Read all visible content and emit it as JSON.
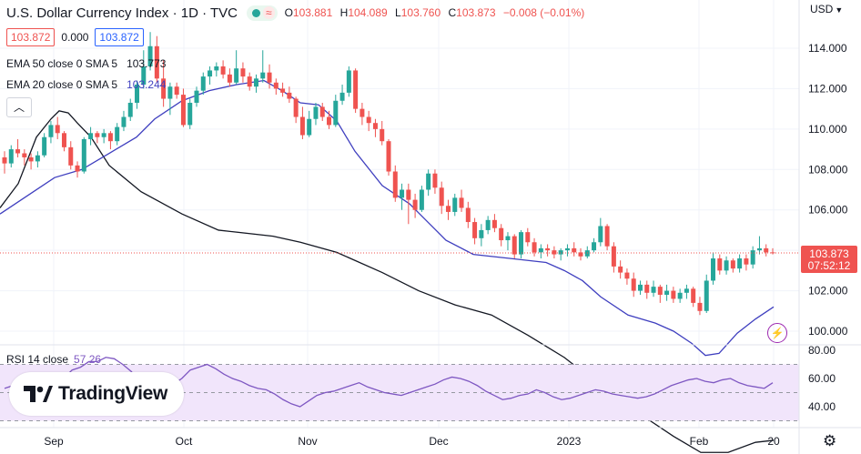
{
  "header": {
    "title": "U.S. Dollar Currency Index · 1D · TVC",
    "open_label": "O",
    "open": "103.881",
    "high_label": "H",
    "high": "104.089",
    "low_label": "L",
    "low": "103.760",
    "close_label": "C",
    "close": "103.873",
    "change": "−0.008 (−0.01%)"
  },
  "quote": {
    "bid": "103.872",
    "spread": "0.000",
    "ask": "103.872"
  },
  "indicators": [
    {
      "label": "EMA 50 close 0 SMA 5",
      "value": "103.773",
      "color": "#131722"
    },
    {
      "label": "EMA 20 close 0 SMA 5",
      "value": "103.244",
      "color": "#3f3fbf"
    }
  ],
  "currency": "USD",
  "rsi": {
    "label": "RSI 14 close",
    "value": "57.26",
    "color": "#7e57c2"
  },
  "brand": "TradingView",
  "price_tag": {
    "price": "103.873",
    "countdown": "07:52:12"
  },
  "colors": {
    "up": "#26a69a",
    "down": "#ef5350",
    "ema50": "#131722",
    "ema20": "#3f3fbf",
    "rsi": "#7e57c2",
    "rsi_band": "#f1e5fb"
  },
  "chart_data": {
    "type": "candlestick",
    "price_axis": {
      "ticks": [
        100,
        102,
        104,
        106,
        108,
        110,
        112,
        114
      ],
      "labels": [
        "100.000",
        "102.000",
        "104.000",
        "106.000",
        "108.000",
        "110.000",
        "112.000",
        "114.000"
      ]
    },
    "time_axis": {
      "labels": [
        "Sep",
        "Oct",
        "Nov",
        "Dec",
        "2023",
        "Feb",
        "20"
      ]
    },
    "rsi_axis": {
      "ticks": [
        40,
        60,
        80
      ],
      "labels": [
        "40.00",
        "60.00",
        "80.00"
      ],
      "upper_band": 70,
      "lower_band": 30
    },
    "candles": [
      [
        108.6,
        108.9,
        107.8,
        108.3
      ],
      [
        108.3,
        109.2,
        108.1,
        109.0
      ],
      [
        109.0,
        109.5,
        108.6,
        108.8
      ],
      [
        108.8,
        109.0,
        108.2,
        108.6
      ],
      [
        108.6,
        108.8,
        108.0,
        108.4
      ],
      [
        108.4,
        108.9,
        108.1,
        108.7
      ],
      [
        108.7,
        109.8,
        108.6,
        109.6
      ],
      [
        109.6,
        110.4,
        109.3,
        110.2
      ],
      [
        110.2,
        110.6,
        109.5,
        109.8
      ],
      [
        109.8,
        109.9,
        108.9,
        109.1
      ],
      [
        109.1,
        109.4,
        108.0,
        108.2
      ],
      [
        108.2,
        108.4,
        107.6,
        107.9
      ],
      [
        107.9,
        109.6,
        107.8,
        109.5
      ],
      [
        109.5,
        110.1,
        109.2,
        109.8
      ],
      [
        109.8,
        109.9,
        109.3,
        109.6
      ],
      [
        109.6,
        110.0,
        109.3,
        109.8
      ],
      [
        109.8,
        109.9,
        109.0,
        109.4
      ],
      [
        109.4,
        110.3,
        109.2,
        110.1
      ],
      [
        110.1,
        110.9,
        109.9,
        110.6
      ],
      [
        110.6,
        111.5,
        110.4,
        111.3
      ],
      [
        111.3,
        112.4,
        111.0,
        112.2
      ],
      [
        112.2,
        113.9,
        112.0,
        113.1
      ],
      [
        113.1,
        114.8,
        112.9,
        114.1
      ],
      [
        114.1,
        114.6,
        112.3,
        112.5
      ],
      [
        112.5,
        113.4,
        111.1,
        111.5
      ],
      [
        111.5,
        112.3,
        110.7,
        112.1
      ],
      [
        112.1,
        112.3,
        111.5,
        111.7
      ],
      [
        111.7,
        112.0,
        110.1,
        110.2
      ],
      [
        110.2,
        111.5,
        110.0,
        111.3
      ],
      [
        111.3,
        112.1,
        111.1,
        111.9
      ],
      [
        111.9,
        112.8,
        111.7,
        112.6
      ],
      [
        112.6,
        113.1,
        112.2,
        112.9
      ],
      [
        112.9,
        113.3,
        112.6,
        113.1
      ],
      [
        113.1,
        113.4,
        112.5,
        112.7
      ],
      [
        112.7,
        113.0,
        112.1,
        112.3
      ],
      [
        112.3,
        113.9,
        112.2,
        113.0
      ],
      [
        113.0,
        113.3,
        112.3,
        112.6
      ],
      [
        112.6,
        112.8,
        111.9,
        112.1
      ],
      [
        112.1,
        112.7,
        111.8,
        112.5
      ],
      [
        112.5,
        113.9,
        112.3,
        112.8
      ],
      [
        112.8,
        113.2,
        112.0,
        112.3
      ],
      [
        112.3,
        112.5,
        111.7,
        112.0
      ],
      [
        112.0,
        112.3,
        111.6,
        111.8
      ],
      [
        111.8,
        112.1,
        111.3,
        111.5
      ],
      [
        111.5,
        111.6,
        110.3,
        110.6
      ],
      [
        110.6,
        111.1,
        109.5,
        109.7
      ],
      [
        109.7,
        110.9,
        109.6,
        110.5
      ],
      [
        110.5,
        111.3,
        110.2,
        111.1
      ],
      [
        111.1,
        111.3,
        110.4,
        110.6
      ],
      [
        110.6,
        110.9,
        110.0,
        110.2
      ],
      [
        110.2,
        111.7,
        110.1,
        111.4
      ],
      [
        111.4,
        112.2,
        111.2,
        111.8
      ],
      [
        111.8,
        113.1,
        111.6,
        112.9
      ],
      [
        112.9,
        113.0,
        110.8,
        111.0
      ],
      [
        111.0,
        111.3,
        110.2,
        110.6
      ],
      [
        110.6,
        110.9,
        109.9,
        110.3
      ],
      [
        110.3,
        110.5,
        109.6,
        110.0
      ],
      [
        110.0,
        110.4,
        109.2,
        109.4
      ],
      [
        109.4,
        109.5,
        107.7,
        107.9
      ],
      [
        107.9,
        108.2,
        106.4,
        106.6
      ],
      [
        106.6,
        107.3,
        106.0,
        107.0
      ],
      [
        107.0,
        107.3,
        105.3,
        106.5
      ],
      [
        106.5,
        106.8,
        105.6,
        106.0
      ],
      [
        106.0,
        107.2,
        105.9,
        107.0
      ],
      [
        107.0,
        108.0,
        106.7,
        107.8
      ],
      [
        107.8,
        108.0,
        106.8,
        107.1
      ],
      [
        107.1,
        107.4,
        105.8,
        106.2
      ],
      [
        106.2,
        106.5,
        105.5,
        105.9
      ],
      [
        105.9,
        106.8,
        105.7,
        106.6
      ],
      [
        106.6,
        107.0,
        105.9,
        106.1
      ],
      [
        106.1,
        106.4,
        105.1,
        105.4
      ],
      [
        105.4,
        105.6,
        104.3,
        104.6
      ],
      [
        104.6,
        105.3,
        104.2,
        105.0
      ],
      [
        105.0,
        105.7,
        104.8,
        105.5
      ],
      [
        105.5,
        105.8,
        104.9,
        105.1
      ],
      [
        105.1,
        105.3,
        104.2,
        104.5
      ],
      [
        104.5,
        104.9,
        104.0,
        104.7
      ],
      [
        104.7,
        104.8,
        103.6,
        103.8
      ],
      [
        103.8,
        105.0,
        103.6,
        104.9
      ],
      [
        104.9,
        105.1,
        104.2,
        104.4
      ],
      [
        104.4,
        104.6,
        103.7,
        103.9
      ],
      [
        103.9,
        104.3,
        103.6,
        104.1
      ],
      [
        104.1,
        104.3,
        103.7,
        104.0
      ],
      [
        104.0,
        104.2,
        103.6,
        103.8
      ],
      [
        103.8,
        104.1,
        103.5,
        104.0
      ],
      [
        104.0,
        104.3,
        103.7,
        104.1
      ],
      [
        104.1,
        104.4,
        103.7,
        103.9
      ],
      [
        103.9,
        104.1,
        103.5,
        103.7
      ],
      [
        103.7,
        104.2,
        103.6,
        104.0
      ],
      [
        104.0,
        104.6,
        103.9,
        104.4
      ],
      [
        104.4,
        105.6,
        104.2,
        105.2
      ],
      [
        105.2,
        105.3,
        104.0,
        104.2
      ],
      [
        104.2,
        104.4,
        102.9,
        103.2
      ],
      [
        103.2,
        103.5,
        102.6,
        102.9
      ],
      [
        102.9,
        103.1,
        102.3,
        102.6
      ],
      [
        102.6,
        102.9,
        101.7,
        102.0
      ],
      [
        102.0,
        102.5,
        101.8,
        102.3
      ],
      [
        102.3,
        102.5,
        101.6,
        101.9
      ],
      [
        101.9,
        102.5,
        101.7,
        102.2
      ],
      [
        102.2,
        102.3,
        101.4,
        101.8
      ],
      [
        101.8,
        102.3,
        101.5,
        102.0
      ],
      [
        102.0,
        102.2,
        101.4,
        101.6
      ],
      [
        101.6,
        102.1,
        101.4,
        101.9
      ],
      [
        101.9,
        102.3,
        101.6,
        102.1
      ],
      [
        102.1,
        102.2,
        101.2,
        101.4
      ],
      [
        101.4,
        101.7,
        100.8,
        101.0
      ],
      [
        101.0,
        102.8,
        100.9,
        102.5
      ],
      [
        102.5,
        103.9,
        102.3,
        103.6
      ],
      [
        103.6,
        103.8,
        102.8,
        103.0
      ],
      [
        103.0,
        103.7,
        102.8,
        103.5
      ],
      [
        103.5,
        103.6,
        102.9,
        103.1
      ],
      [
        103.1,
        103.8,
        102.9,
        103.6
      ],
      [
        103.6,
        103.8,
        103.0,
        103.3
      ],
      [
        103.3,
        104.2,
        103.1,
        104.0
      ],
      [
        104.0,
        104.7,
        103.8,
        104.1
      ],
      [
        104.1,
        104.3,
        103.7,
        103.9
      ],
      [
        103.9,
        104.1,
        103.8,
        103.873
      ]
    ],
    "ema50": [
      [
        0,
        106.1
      ],
      [
        20,
        107.3
      ],
      [
        40,
        109.6
      ],
      [
        56,
        110.5
      ],
      [
        65,
        110.9
      ],
      [
        75,
        110.8
      ],
      [
        85,
        110.3
      ],
      [
        100,
        109.6
      ],
      [
        120,
        108.2
      ],
      [
        155,
        106.9
      ],
      [
        200,
        105.8
      ],
      [
        240,
        105.0
      ],
      [
        300,
        104.7
      ],
      [
        330,
        104.4
      ],
      [
        370,
        103.9
      ],
      [
        420,
        102.9
      ],
      [
        460,
        102.0
      ],
      [
        500,
        101.3
      ],
      [
        540,
        100.8
      ],
      [
        580,
        99.8
      ],
      [
        620,
        98.7
      ],
      [
        660,
        97.3
      ],
      [
        700,
        96.0
      ],
      [
        740,
        94.8
      ],
      [
        770,
        94.0
      ],
      [
        800,
        94.0
      ],
      [
        830,
        94.5
      ],
      [
        850,
        94.6
      ]
    ],
    "ema20": [
      [
        0,
        105.8
      ],
      [
        30,
        106.7
      ],
      [
        60,
        107.6
      ],
      [
        90,
        108.0
      ],
      [
        120,
        108.8
      ],
      [
        150,
        109.6
      ],
      [
        170,
        110.5
      ],
      [
        200,
        111.4
      ],
      [
        230,
        111.9
      ],
      [
        260,
        112.2
      ],
      [
        290,
        112.4
      ],
      [
        310,
        111.9
      ],
      [
        330,
        111.3
      ],
      [
        350,
        111.2
      ],
      [
        370,
        110.4
      ],
      [
        390,
        108.9
      ],
      [
        420,
        107.2
      ],
      [
        450,
        106.3
      ],
      [
        470,
        105.4
      ],
      [
        490,
        104.5
      ],
      [
        520,
        103.8
      ],
      [
        560,
        103.6
      ],
      [
        600,
        103.4
      ],
      [
        620,
        103.0
      ],
      [
        640,
        102.5
      ],
      [
        660,
        101.7
      ],
      [
        690,
        100.8
      ],
      [
        720,
        100.4
      ],
      [
        740,
        100.0
      ],
      [
        760,
        99.4
      ],
      [
        775,
        98.8
      ],
      [
        790,
        98.9
      ],
      [
        810,
        99.9
      ],
      [
        830,
        100.6
      ],
      [
        850,
        101.2
      ]
    ],
    "rsi": [
      53,
      55,
      56,
      59,
      61,
      58,
      57,
      60,
      66,
      68,
      72,
      72,
      75,
      74,
      70,
      65,
      58,
      55,
      53,
      51,
      56,
      60,
      66,
      68,
      70,
      67,
      63,
      60,
      58,
      55,
      53,
      52,
      49,
      45,
      42,
      40,
      44,
      48,
      50,
      51,
      53,
      55,
      57,
      54,
      52,
      50,
      49,
      48,
      50,
      52,
      54,
      56,
      59,
      61,
      60,
      58,
      55,
      51,
      48,
      45,
      46,
      48,
      49,
      52,
      50,
      47,
      45,
      46,
      48,
      50,
      52,
      51,
      49,
      48,
      47,
      46,
      47,
      49,
      52,
      55,
      57,
      59,
      60,
      58,
      57,
      59,
      60,
      57,
      55,
      54,
      53,
      57
    ]
  }
}
